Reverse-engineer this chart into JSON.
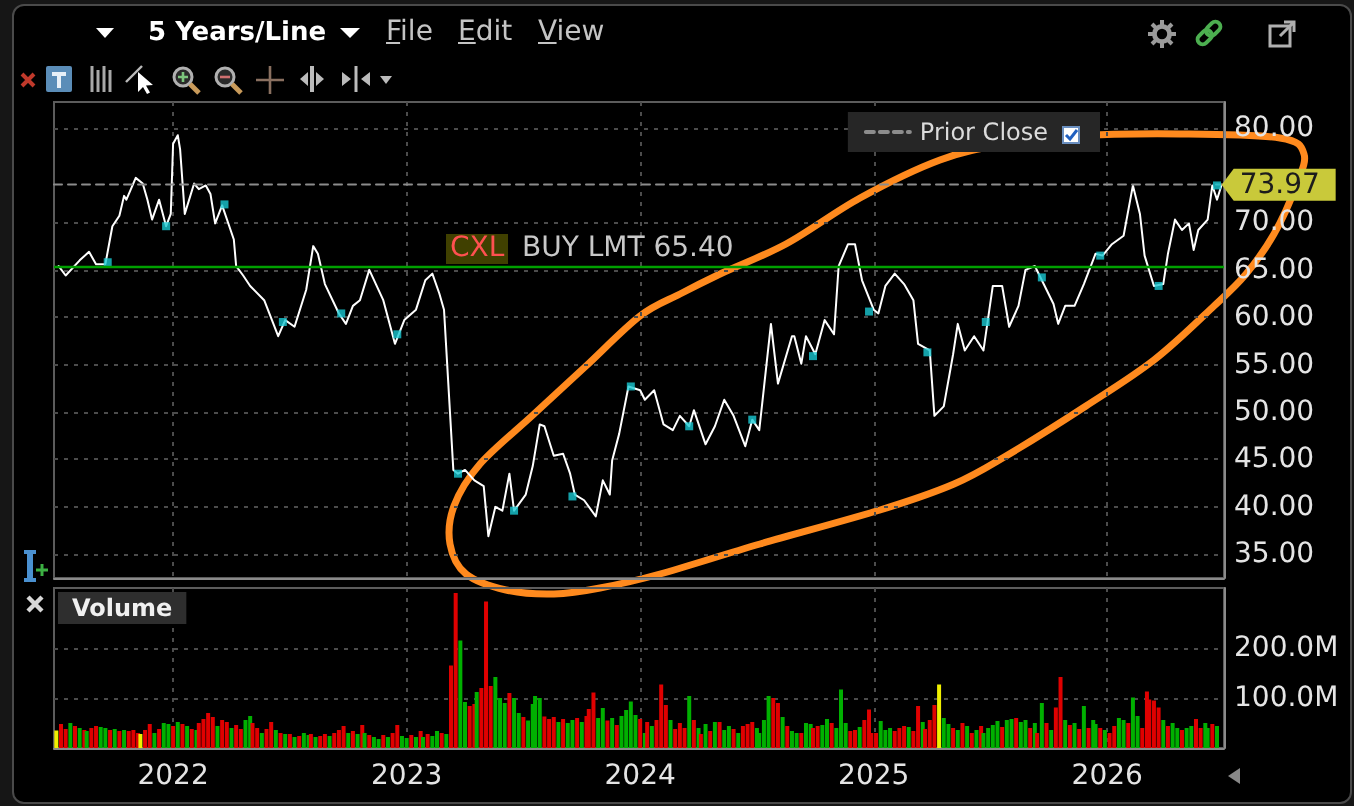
{
  "chart_data": [
    {
      "type": "line",
      "title": "5 Years/Line",
      "x": [
        2021.51,
        2021.54,
        2021.6,
        2021.64,
        2021.67,
        2021.71,
        2021.74,
        2021.77,
        2021.79,
        2021.8,
        2021.84,
        2021.87,
        2021.89,
        2021.91,
        2021.94,
        2021.97,
        2021.99,
        2022.0,
        2022.02,
        2022.03,
        2022.05,
        2022.09,
        2022.11,
        2022.14,
        2022.16,
        2022.18,
        2022.21,
        2022.26,
        2022.27,
        2022.3,
        2022.33,
        2022.39,
        2022.45,
        2022.48,
        2022.52,
        2022.57,
        2022.6,
        2022.62,
        2022.65,
        2022.71,
        2022.74,
        2022.77,
        2022.8,
        2022.84,
        2022.9,
        2022.95,
        2022.99,
        2023.04,
        2023.08,
        2023.11,
        2023.14,
        2023.16,
        2023.2,
        2023.22,
        2023.25,
        2023.29,
        2023.33,
        2023.35,
        2023.38,
        2023.41,
        2023.44,
        2023.46,
        2023.51,
        2023.54,
        2023.57,
        2023.59,
        2023.63,
        2023.67,
        2023.7,
        2023.72,
        2023.76,
        2023.81,
        2023.84,
        2023.87,
        2023.88,
        2023.91,
        2023.95,
        2024.0,
        2024.02,
        2024.06,
        2024.1,
        2024.14,
        2024.17,
        2024.21,
        2024.23,
        2024.28,
        2024.32,
        2024.36,
        2024.4,
        2024.45,
        2024.48,
        2024.51,
        2024.56,
        2024.59,
        2024.65,
        2024.66,
        2024.69,
        2024.71,
        2024.75,
        2024.79,
        2024.83,
        2024.85,
        2024.89,
        2024.92,
        2024.95,
        2025.0,
        2025.02,
        2025.05,
        2025.09,
        2025.13,
        2025.17,
        2025.19,
        2025.24,
        2025.26,
        2025.3,
        2025.34,
        2025.36,
        2025.39,
        2025.43,
        2025.47,
        2025.51,
        2025.55,
        2025.58,
        2025.62,
        2025.65,
        2025.69,
        2025.72,
        2025.77,
        2025.79,
        2025.82,
        2025.86,
        2025.9,
        2025.95,
        2025.98,
        2026.02,
        2026.07,
        2026.11,
        2026.14,
        2026.16,
        2026.2,
        2026.24,
        2026.26,
        2026.29,
        2026.32,
        2026.35,
        2026.37,
        2026.39,
        2026.43,
        2026.45,
        2026.47,
        2026.49
      ],
      "series": [
        {
          "color": "#ffffff",
          "values": [
            65.4,
            64.4,
            66.0,
            66.9,
            65.6,
            65.6,
            69.6,
            70.7,
            72.8,
            72.4,
            74.7,
            74.1,
            72.4,
            70.3,
            72.4,
            69.6,
            70.9,
            78.3,
            79.2,
            77.7,
            70.9,
            74.1,
            73.5,
            73.9,
            73.0,
            69.9,
            71.8,
            68.2,
            65.4,
            64.4,
            63.3,
            61.8,
            58.0,
            59.7,
            59.0,
            62.9,
            67.5,
            66.7,
            63.5,
            60.4,
            59.3,
            61.2,
            61.8,
            65.0,
            61.8,
            57.2,
            59.7,
            60.8,
            63.9,
            64.6,
            62.5,
            60.8,
            43.9,
            43.5,
            43.9,
            42.8,
            42.2,
            36.9,
            40.0,
            39.6,
            43.5,
            39.6,
            41.3,
            44.3,
            48.7,
            48.5,
            45.4,
            45.6,
            43.5,
            41.3,
            40.7,
            39.0,
            42.8,
            41.3,
            44.9,
            47.7,
            52.7,
            52.3,
            51.3,
            52.3,
            48.7,
            48.1,
            49.6,
            48.5,
            50.2,
            46.6,
            48.5,
            51.3,
            49.6,
            46.4,
            49.2,
            48.1,
            59.3,
            53.0,
            58.0,
            58.0,
            55.1,
            58.0,
            56.1,
            59.7,
            58.2,
            65.4,
            67.7,
            67.7,
            63.9,
            60.8,
            60.4,
            63.3,
            64.6,
            63.5,
            61.8,
            57.2,
            56.5,
            49.6,
            50.6,
            56.1,
            59.3,
            56.5,
            58.0,
            56.5,
            63.3,
            63.3,
            59.0,
            61.2,
            65.0,
            65.4,
            63.9,
            61.4,
            59.3,
            61.2,
            61.2,
            63.5,
            66.7,
            66.5,
            67.7,
            68.6,
            73.9,
            70.9,
            66.5,
            63.3,
            63.5,
            66.7,
            70.3,
            69.2,
            69.9,
            67.1,
            69.2,
            70.3,
            73.9,
            72.4,
            73.97
          ]
        },
        {
          "type": "scatter",
          "marker": "square",
          "color": "#19c8d2",
          "x": [
            2021.72,
            2021.97,
            2022.22,
            2022.47,
            2022.72,
            2022.96,
            2023.22,
            2023.46,
            2023.71,
            2023.96,
            2024.21,
            2024.48,
            2024.74,
            2024.98,
            2025.23,
            2025.48,
            2025.72,
            2025.97,
            2026.22,
            2026.47
          ],
          "values": [
            65.8,
            69.6,
            71.9,
            59.5,
            60.4,
            58.2,
            43.5,
            39.6,
            41.1,
            52.7,
            48.5,
            49.2,
            55.9,
            60.6,
            56.3,
            59.5,
            64.2,
            66.5,
            63.3,
            73.9
          ]
        },
        {
          "type": "line",
          "name": "Prior Close",
          "color": "#8c8c8c",
          "line_style": "dashed",
          "x": [
            2021.49,
            2026.5
          ],
          "values": [
            74,
            74
          ]
        }
      ],
      "xlim": [
        2021.49,
        2026.5
      ],
      "xticks": [
        2022,
        2023,
        2024,
        2025,
        2026
      ],
      "ylim": [
        32.5,
        82.7
      ],
      "yticks": [
        {
          "value": 35,
          "label": "35.00"
        },
        {
          "value": 40,
          "label": "40.00"
        },
        {
          "value": 45,
          "label": "45.00"
        },
        {
          "value": 50,
          "label": "50.00"
        },
        {
          "value": 55,
          "label": "55.00"
        },
        {
          "value": 60,
          "label": "60.00"
        },
        {
          "value": 65,
          "label": "65.00"
        },
        {
          "value": 70,
          "label": "70.00"
        },
        {
          "value": 80,
          "label": "80.00"
        }
      ],
      "ref_lines": [
        {
          "axis": "y",
          "value": 65.4,
          "label": "BUY LMT 65.40",
          "color": "#00a000"
        }
      ],
      "annotations": [
        "File",
        "Edit",
        "View",
        "CXL",
        {
          "text": "73.97",
          "x": 2026.49,
          "y": 73.97
        }
      ],
      "legend": "top right",
      "grid": true,
      "tick_labels": "y"
    },
    {
      "type": "bar",
      "title": "Volume",
      "x": [
        2021.5,
        2021.52,
        2021.54,
        2021.56,
        2021.58,
        2021.6,
        2021.62,
        2021.63,
        2021.65,
        2021.67,
        2021.69,
        2021.71,
        2021.73,
        2021.75,
        2021.77,
        2021.79,
        2021.81,
        2021.83,
        2021.85,
        2021.86,
        2021.88,
        2021.9,
        2021.92,
        2021.94,
        2021.96,
        2021.98,
        2022.0,
        2022.02,
        2022.04,
        2022.06,
        2022.08,
        2022.1,
        2022.11,
        2022.13,
        2022.15,
        2022.17,
        2022.19,
        2022.21,
        2022.23,
        2022.25,
        2022.27,
        2022.29,
        2022.31,
        2022.33,
        2022.34,
        2022.36,
        2022.38,
        2022.4,
        2022.42,
        2022.44,
        2022.46,
        2022.48,
        2022.5,
        2022.52,
        2022.54,
        2022.56,
        2022.58,
        2022.59,
        2022.61,
        2022.63,
        2022.65,
        2022.67,
        2022.69,
        2022.71,
        2022.73,
        2022.75,
        2022.77,
        2022.79,
        2022.81,
        2022.82,
        2022.84,
        2022.86,
        2022.88,
        2022.9,
        2022.92,
        2022.94,
        2022.96,
        2022.98,
        2023.0,
        2023.02,
        2023.04,
        2023.06,
        2023.07,
        2023.09,
        2023.11,
        2023.13,
        2023.15,
        2023.17,
        2023.19,
        2023.21,
        2023.23,
        2023.25,
        2023.27,
        2023.29,
        2023.3,
        2023.32,
        2023.34,
        2023.36,
        2023.38,
        2023.4,
        2023.42,
        2023.44,
        2023.46,
        2023.48,
        2023.5,
        2023.52,
        2023.54,
        2023.55,
        2023.57,
        2023.59,
        2023.61,
        2023.63,
        2023.65,
        2023.67,
        2023.69,
        2023.71,
        2023.73,
        2023.75,
        2023.77,
        2023.78,
        2023.8,
        2023.82,
        2023.84,
        2023.86,
        2023.88,
        2023.9,
        2023.92,
        2023.94,
        2023.96,
        2023.98,
        2024.0,
        2024.02,
        2024.03,
        2024.05,
        2024.07,
        2024.09,
        2024.11,
        2024.13,
        2024.15,
        2024.17,
        2024.19,
        2024.21,
        2024.23,
        2024.25,
        2024.26,
        2024.28,
        2024.3,
        2024.32,
        2024.34,
        2024.36,
        2024.38,
        2024.4,
        2024.42,
        2024.44,
        2024.46,
        2024.48,
        2024.5,
        2024.51,
        2024.53,
        2024.55,
        2024.57,
        2024.59,
        2024.61,
        2024.63,
        2024.65,
        2024.67,
        2024.69,
        2024.71,
        2024.73,
        2024.74,
        2024.76,
        2024.78,
        2024.8,
        2024.82,
        2024.84,
        2024.86,
        2024.88,
        2024.9,
        2024.92,
        2024.94,
        2024.96,
        2024.98,
        2024.99,
        2025.01,
        2025.03,
        2025.05,
        2025.07,
        2025.09,
        2025.11,
        2025.13,
        2025.15,
        2025.17,
        2025.19,
        2025.21,
        2025.22,
        2025.24,
        2025.26,
        2025.28,
        2025.3,
        2025.32,
        2025.34,
        2025.36,
        2025.38,
        2025.4,
        2025.42,
        2025.44,
        2025.46,
        2025.47,
        2025.49,
        2025.51,
        2025.53,
        2025.55,
        2025.57,
        2025.59,
        2025.61,
        2025.63,
        2025.65,
        2025.67,
        2025.69,
        2025.7,
        2025.72,
        2025.74,
        2025.76,
        2025.78,
        2025.8,
        2025.82,
        2025.84,
        2025.86,
        2025.88,
        2025.9,
        2025.92,
        2025.94,
        2025.95,
        2025.97,
        2025.99,
        2026.01,
        2026.03,
        2026.05,
        2026.07,
        2026.09,
        2026.11,
        2026.13,
        2026.15,
        2026.17,
        2026.18,
        2026.2,
        2026.22,
        2026.24,
        2026.26,
        2026.28,
        2026.3,
        2026.32,
        2026.34,
        2026.36,
        2026.38,
        2026.4,
        2026.42,
        2026.43,
        2026.45,
        2026.47
      ],
      "values": [
        35,
        48,
        38,
        50,
        44,
        40,
        36,
        34,
        40,
        44,
        42,
        40,
        36,
        38,
        34,
        36,
        34,
        36,
        30,
        28,
        36,
        48,
        30,
        38,
        50,
        48,
        44,
        52,
        48,
        44,
        38,
        36,
        50,
        58,
        70,
        62,
        44,
        56,
        52,
        40,
        46,
        38,
        56,
        64,
        50,
        40,
        30,
        38,
        52,
        36,
        30,
        28,
        28,
        22,
        24,
        30,
        26,
        28,
        22,
        24,
        28,
        24,
        30,
        36,
        44,
        30,
        34,
        28,
        46,
        30,
        26,
        22,
        18,
        26,
        22,
        30,
        46,
        24,
        20,
        26,
        22,
        34,
        22,
        28,
        24,
        34,
        30,
        28,
        165,
        310,
        215,
        92,
        84,
        88,
        112,
        120,
        293,
        124,
        142,
        100,
        90,
        110,
        100,
        70,
        62,
        55,
        88,
        104,
        100,
        63,
        58,
        62,
        52,
        58,
        50,
        56,
        60,
        52,
        64,
        78,
        111,
        60,
        80,
        55,
        60,
        46,
        64,
        76,
        93,
        66,
        58,
        30,
        52,
        44,
        56,
        127,
        86,
        56,
        38,
        50,
        40,
        104,
        56,
        40,
        28,
        48,
        34,
        52,
        52,
        36,
        44,
        38,
        30,
        44,
        48,
        52,
        40,
        30,
        56,
        104,
        100,
        90,
        62,
        44,
        34,
        30,
        30,
        50,
        48,
        40,
        44,
        46,
        58,
        50,
        40,
        117,
        50,
        34,
        36,
        42,
        56,
        77,
        30,
        30,
        54,
        36,
        40,
        34,
        40,
        44,
        42,
        34,
        84,
        52,
        38,
        56,
        86,
        127,
        60,
        48,
        40,
        36,
        50,
        44,
        30,
        36,
        44,
        30,
        40,
        46,
        54,
        42,
        56,
        58,
        60,
        52,
        56,
        40,
        50,
        30,
        90,
        50,
        36,
        81,
        142,
        56,
        46,
        50,
        38,
        84,
        40,
        56,
        48,
        40,
        36,
        30,
        44,
        60,
        56,
        50,
        101,
        64,
        40,
        113,
        97,
        95,
        81,
        56,
        44,
        50,
        40,
        36,
        40,
        44,
        58,
        40,
        50,
        40,
        48,
        44
      ],
      "colors": [
        "#f0f000",
        "#e00000",
        "#e00000",
        "#00b000",
        "#e00000",
        "#00b000",
        "#e00000",
        "#00b000",
        "#e00000",
        "#e00000",
        "#00b000",
        "#00b000",
        "#e00000",
        "#00b000",
        "#e00000",
        "#00b000",
        "#e00000",
        "#e00000",
        "#e00000",
        "#f0f000",
        "#e00000",
        "#e00000",
        "#00b000",
        "#e00000",
        "#00b000",
        "#00b000",
        "#e00000",
        "#00b000",
        "#e00000",
        "#00b000",
        "#e00000",
        "#00b000",
        "#e00000",
        "#e00000",
        "#e00000",
        "#e00000",
        "#00b000",
        "#e00000",
        "#e00000",
        "#00b000",
        "#e00000",
        "#e00000",
        "#00b000",
        "#00b000",
        "#e00000",
        "#e00000",
        "#00b000",
        "#e00000",
        "#e00000",
        "#00b000",
        "#e00000",
        "#00b000",
        "#e00000",
        "#00b000",
        "#e00000",
        "#00b000",
        "#00b000",
        "#e00000",
        "#00b000",
        "#e00000",
        "#e00000",
        "#00b000",
        "#e00000",
        "#e00000",
        "#e00000",
        "#00b000",
        "#e00000",
        "#00b000",
        "#e00000",
        "#00b000",
        "#e00000",
        "#00b000",
        "#00b000",
        "#e00000",
        "#00b000",
        "#e00000",
        "#e00000",
        "#00b000",
        "#00b000",
        "#e00000",
        "#00b000",
        "#e00000",
        "#00b000",
        "#e00000",
        "#00b000",
        "#00b000",
        "#e00000",
        "#00b000",
        "#e00000",
        "#e00000",
        "#00b000",
        "#00b000",
        "#e00000",
        "#e00000",
        "#00b000",
        "#e00000",
        "#e00000",
        "#e00000",
        "#00b000",
        "#00b000",
        "#00b000",
        "#e00000",
        "#00b000",
        "#00b000",
        "#e00000",
        "#00b000",
        "#00b000",
        "#00b000",
        "#00b000",
        "#e00000",
        "#e00000",
        "#e00000",
        "#00b000",
        "#e00000",
        "#00b000",
        "#00b000",
        "#e00000",
        "#00b000",
        "#e00000",
        "#e00000",
        "#e00000",
        "#00b000",
        "#00b000",
        "#e00000",
        "#00b000",
        "#e00000",
        "#00b000",
        "#00b000",
        "#00b000",
        "#00b000",
        "#e00000",
        "#00b000",
        "#e00000",
        "#00b000",
        "#e00000",
        "#e00000",
        "#e00000",
        "#00b000",
        "#e00000",
        "#e00000",
        "#e00000",
        "#00b000",
        "#e00000",
        "#00b000",
        "#e00000",
        "#00b000",
        "#e00000",
        "#00b000",
        "#e00000",
        "#00b000",
        "#00b000",
        "#e00000",
        "#00b000",
        "#e00000",
        "#e00000",
        "#e00000",
        "#00b000",
        "#00b000",
        "#00b000",
        "#00b000",
        "#e00000",
        "#e00000",
        "#00b000",
        "#e00000",
        "#00b000",
        "#00b000",
        "#e00000",
        "#00b000",
        "#00b000",
        "#e00000",
        "#e00000",
        "#00b000",
        "#00b000",
        "#e00000",
        "#00b000",
        "#00b000",
        "#00b000",
        "#e00000",
        "#e00000",
        "#00b000",
        "#e00000",
        "#e00000",
        "#e00000",
        "#e00000",
        "#00b000",
        "#00b000",
        "#00b000",
        "#e00000",
        "#e00000",
        "#e00000",
        "#00b000",
        "#e00000",
        "#e00000",
        "#00b000",
        "#e00000",
        "#e00000",
        "#e00000",
        "#f0f000",
        "#00b000",
        "#00b000",
        "#e00000",
        "#00b000",
        "#e00000",
        "#00b000",
        "#e00000",
        "#00b000",
        "#e00000",
        "#00b000",
        "#00b000",
        "#00b000",
        "#00b000",
        "#e00000",
        "#00b000",
        "#00b000",
        "#e00000",
        "#00b000",
        "#00b000",
        "#e00000",
        "#00b000",
        "#e00000",
        "#00b000",
        "#e00000",
        "#00b000",
        "#e00000",
        "#e00000",
        "#00b000",
        "#e00000",
        "#00b000",
        "#e00000",
        "#00b000",
        "#e00000",
        "#00b000",
        "#00b000",
        "#e00000",
        "#00b000",
        "#e00000",
        "#e00000",
        "#00b000",
        "#00b000",
        "#e00000",
        "#00b000",
        "#00b000",
        "#e00000",
        "#e00000",
        "#e00000",
        "#e00000",
        "#e00000",
        "#00b000",
        "#e00000",
        "#00b000",
        "#00b000",
        "#e00000",
        "#00b000",
        "#00b000",
        "#e00000",
        "#e00000",
        "#00b000",
        "#00b000",
        "#e00000",
        "#00b000"
      ],
      "xlim": [
        2021.49,
        2026.5
      ],
      "xticks": [
        2022,
        2023,
        2024,
        2025,
        2026
      ],
      "ylim": [
        0,
        320
      ],
      "yticks": [
        {
          "value": 100,
          "label": "100.0M"
        },
        {
          "value": 200,
          "label": "200.0M"
        }
      ],
      "grid": true
    }
  ]
}
